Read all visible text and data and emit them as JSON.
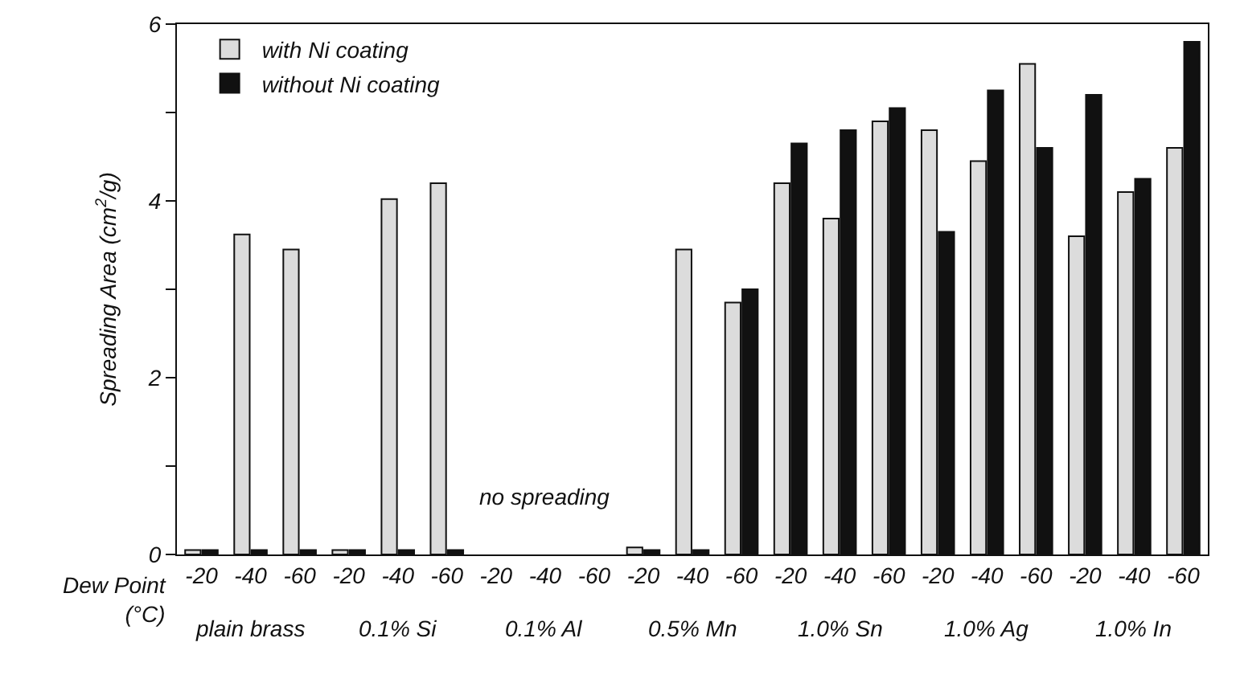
{
  "chart_data": {
    "type": "bar",
    "ylabel": "Spreading Area (cm$^{2}$/g)",
    "xlabel": "Dew Point (°C)",
    "categories": [
      "-20",
      "-40",
      "-60",
      "-20",
      "-40",
      "-60",
      "-20",
      "-40",
      "-60",
      "-20",
      "-40",
      "-60",
      "-20",
      "-40",
      "-60",
      "-20",
      "-40",
      "-60",
      "-20",
      "-40",
      "-60"
    ],
    "series": [
      {
        "name": "with Ni coating",
        "color": "#dcdcdc",
        "values": [
          0.05,
          3.62,
          3.45,
          0.05,
          4.02,
          4.2,
          null,
          null,
          null,
          0.08,
          3.45,
          2.85,
          4.2,
          3.8,
          4.9,
          4.8,
          4.45,
          5.55,
          3.6,
          4.1,
          4.6
        ]
      },
      {
        "name": "without Ni coating",
        "color": "#111111",
        "values": [
          0.05,
          0.05,
          0.05,
          0.05,
          0.05,
          0.05,
          null,
          null,
          null,
          0.05,
          0.05,
          3.0,
          4.65,
          4.8,
          5.05,
          3.65,
          5.25,
          4.6,
          5.2,
          4.25,
          5.8
        ]
      }
    ],
    "annotations": [
      "plain brass",
      "0.1% Si",
      "0.1% Al",
      "0.5% Mn",
      "1.0% Sn",
      "1.0% Ag",
      "1.0% In",
      "no spreading"
    ],
    "ylim": [
      0,
      6
    ],
    "yticks": [
      0,
      {
        "value": 1,
        "label": null
      },
      2,
      {
        "value": 3,
        "label": null
      },
      4,
      {
        "value": 5,
        "label": null
      },
      6
    ],
    "legend": "top left",
    "grid": false
  }
}
